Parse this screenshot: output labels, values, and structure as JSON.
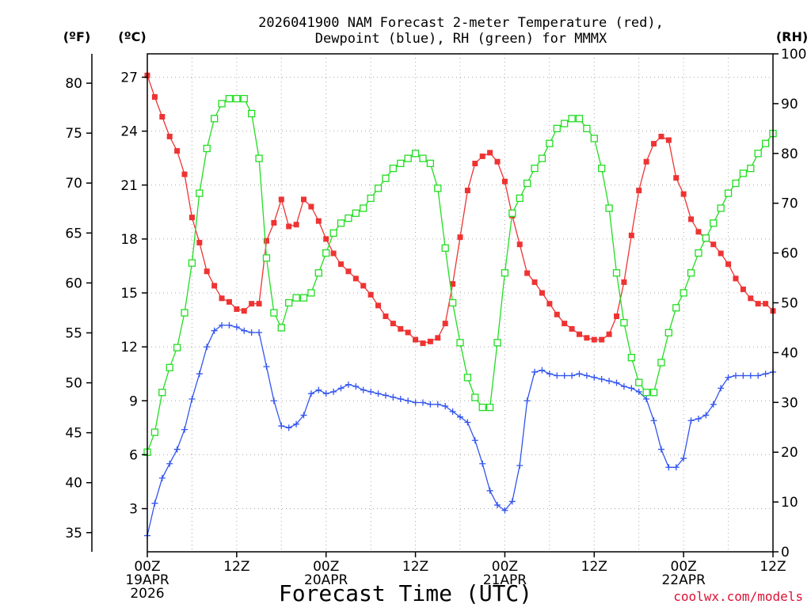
{
  "chart_data": {
    "type": "line",
    "title_lines": [
      "2026041900 NAM Forecast 2-meter Temperature (red),",
      "Dewpoint (blue), RH (green) for MMMX"
    ],
    "xlabel": "Forecast Time (UTC)",
    "credit": "coolwx.com/models",
    "unit_labels": {
      "fahrenheit": "(ºF)",
      "celsius": "(ºC)",
      "rh": "(RH)"
    },
    "x_range_hours": [
      0,
      84
    ],
    "x_ticks": [
      {
        "hour": 0,
        "lines": [
          "00Z",
          "19APR",
          "2026"
        ]
      },
      {
        "hour": 12,
        "lines": [
          "12Z"
        ]
      },
      {
        "hour": 24,
        "lines": [
          "00Z",
          "20APR"
        ]
      },
      {
        "hour": 36,
        "lines": [
          "12Z"
        ]
      },
      {
        "hour": 48,
        "lines": [
          "00Z",
          "21APR"
        ]
      },
      {
        "hour": 60,
        "lines": [
          "12Z"
        ]
      },
      {
        "hour": 72,
        "lines": [
          "00Z",
          "22APR"
        ]
      },
      {
        "hour": 84,
        "lines": [
          "12Z"
        ]
      }
    ],
    "celsius_axis": {
      "range": [
        0.6,
        28.3
      ],
      "ticks": [
        3,
        6,
        9,
        12,
        15,
        18,
        21,
        24,
        27
      ]
    },
    "fahrenheit_axis": {
      "ticks": [
        35,
        40,
        45,
        50,
        55,
        60,
        65,
        70,
        75,
        80
      ]
    },
    "rh_axis": {
      "range": [
        0,
        100
      ],
      "ticks": [
        0,
        10,
        20,
        30,
        40,
        50,
        60,
        70,
        80,
        90,
        100
      ]
    },
    "series": [
      {
        "name": "Temperature",
        "unit": "C",
        "color": "#ee3333",
        "marker": "filled-square",
        "x": [
          0,
          1,
          2,
          3,
          4,
          5,
          6,
          7,
          8,
          9,
          10,
          11,
          12,
          13,
          14,
          15,
          16,
          17,
          18,
          19,
          20,
          21,
          22,
          23,
          24,
          25,
          26,
          27,
          28,
          29,
          30,
          31,
          32,
          33,
          34,
          35,
          36,
          37,
          38,
          39,
          40,
          41,
          42,
          43,
          44,
          45,
          46,
          47,
          48,
          49,
          50,
          51,
          52,
          53,
          54,
          55,
          56,
          57,
          58,
          59,
          60,
          61,
          62,
          63,
          64,
          65,
          66,
          67,
          68,
          69,
          70,
          71,
          72,
          73,
          74,
          75,
          76,
          77,
          78,
          79,
          80,
          81,
          82,
          83,
          84
        ],
        "values": [
          27.1,
          25.9,
          24.8,
          23.7,
          22.9,
          21.6,
          19.2,
          17.8,
          16.2,
          15.4,
          14.7,
          14.5,
          14.1,
          14.0,
          14.4,
          14.4,
          17.9,
          18.9,
          20.2,
          18.7,
          18.8,
          20.2,
          19.8,
          19.0,
          18.0,
          17.2,
          16.6,
          16.2,
          15.8,
          15.4,
          14.9,
          14.3,
          13.7,
          13.3,
          13.0,
          12.8,
          12.4,
          12.2,
          12.3,
          12.5,
          13.3,
          15.5,
          18.1,
          20.7,
          22.2,
          22.6,
          22.8,
          22.3,
          21.2,
          19.3,
          17.7,
          16.1,
          15.6,
          15.0,
          14.4,
          13.8,
          13.3,
          13.0,
          12.7,
          12.5,
          12.4,
          12.4,
          12.7,
          13.7,
          15.6,
          18.2,
          20.7,
          22.3,
          23.3,
          23.7,
          23.5,
          21.4,
          20.5,
          19.1,
          18.4,
          18.0,
          17.7,
          17.2,
          16.6,
          15.8,
          15.2,
          14.7,
          14.4,
          14.4,
          14.0
        ]
      },
      {
        "name": "Dewpoint",
        "unit": "C",
        "color": "#3355ee",
        "marker": "plus",
        "x": [
          0,
          1,
          2,
          3,
          4,
          5,
          6,
          7,
          8,
          9,
          10,
          11,
          12,
          13,
          14,
          15,
          16,
          17,
          18,
          19,
          20,
          21,
          22,
          23,
          24,
          25,
          26,
          27,
          28,
          29,
          30,
          31,
          32,
          33,
          34,
          35,
          36,
          37,
          38,
          39,
          40,
          41,
          42,
          43,
          44,
          45,
          46,
          47,
          48,
          49,
          50,
          51,
          52,
          53,
          54,
          55,
          56,
          57,
          58,
          59,
          60,
          61,
          62,
          63,
          64,
          65,
          66,
          67,
          68,
          69,
          70,
          71,
          72,
          73,
          74,
          75,
          76,
          77,
          78,
          79,
          80,
          81,
          82,
          83,
          84
        ],
        "values": [
          1.5,
          3.3,
          4.7,
          5.5,
          6.3,
          7.4,
          9.1,
          10.5,
          12.0,
          12.9,
          13.2,
          13.2,
          13.1,
          12.9,
          12.8,
          12.8,
          10.9,
          9.0,
          7.6,
          7.5,
          7.7,
          8.2,
          9.4,
          9.6,
          9.4,
          9.5,
          9.7,
          9.9,
          9.8,
          9.6,
          9.5,
          9.4,
          9.3,
          9.2,
          9.1,
          9.0,
          8.9,
          8.9,
          8.8,
          8.8,
          8.7,
          8.4,
          8.1,
          7.8,
          6.8,
          5.5,
          4.0,
          3.2,
          2.9,
          3.4,
          5.4,
          9.0,
          10.6,
          10.7,
          10.5,
          10.4,
          10.4,
          10.4,
          10.5,
          10.4,
          10.3,
          10.2,
          10.1,
          10.0,
          9.8,
          9.7,
          9.5,
          9.1,
          7.9,
          6.3,
          5.3,
          5.3,
          5.8,
          7.9,
          8.0,
          8.2,
          8.8,
          9.7,
          10.3,
          10.4,
          10.4,
          10.4,
          10.4,
          10.5,
          10.6
        ]
      },
      {
        "name": "RH",
        "unit": "%",
        "color": "#22dd22",
        "marker": "open-square",
        "x": [
          0,
          1,
          2,
          3,
          4,
          5,
          6,
          7,
          8,
          9,
          10,
          11,
          12,
          13,
          14,
          15,
          16,
          17,
          18,
          19,
          20,
          21,
          22,
          23,
          24,
          25,
          26,
          27,
          28,
          29,
          30,
          31,
          32,
          33,
          34,
          35,
          36,
          37,
          38,
          39,
          40,
          41,
          42,
          43,
          44,
          45,
          46,
          47,
          48,
          49,
          50,
          51,
          52,
          53,
          54,
          55,
          56,
          57,
          58,
          59,
          60,
          61,
          62,
          63,
          64,
          65,
          66,
          67,
          68,
          69,
          70,
          71,
          72,
          73,
          74,
          75,
          76,
          77,
          78,
          79,
          80,
          81,
          82,
          83,
          84
        ],
        "values": [
          20,
          24,
          32,
          37,
          41,
          48,
          58,
          72,
          81,
          87,
          90,
          91,
          91,
          91,
          88,
          79,
          59,
          48,
          45,
          50,
          51,
          51,
          52,
          56,
          60,
          64,
          66,
          67,
          68,
          69,
          71,
          73,
          75,
          77,
          78,
          79,
          80,
          79,
          78,
          73,
          61,
          50,
          42,
          35,
          31,
          29,
          29,
          42,
          56,
          68,
          71,
          74,
          77,
          79,
          82,
          85,
          86,
          87,
          87,
          85,
          83,
          77,
          69,
          56,
          46,
          39,
          34,
          32,
          32,
          38,
          44,
          49,
          52,
          56,
          60,
          63,
          66,
          69,
          72,
          74,
          76,
          77,
          80,
          82,
          84
        ]
      }
    ]
  }
}
